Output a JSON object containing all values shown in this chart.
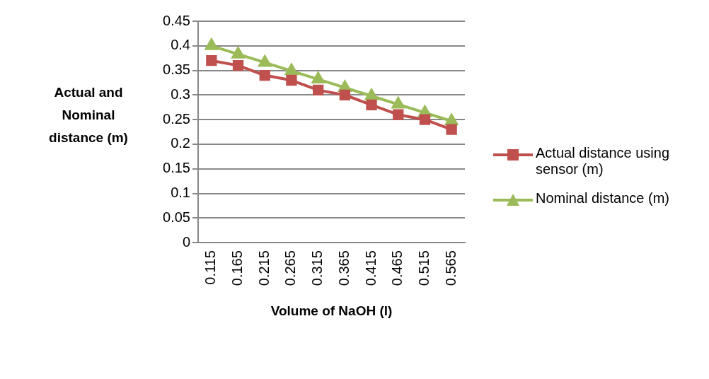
{
  "chart_data": {
    "type": "line",
    "xlabel": "Volume of NaOH (l)",
    "ylabel": "Actual and Nominal distance (m)",
    "categories": [
      "0.115",
      "0.165",
      "0.215",
      "0.265",
      "0.315",
      "0.365",
      "0.415",
      "0.465",
      "0.515",
      "0.565"
    ],
    "series": [
      {
        "name": "Actual distance using sensor (m)",
        "color": "#c0504d",
        "marker": "square",
        "values": [
          0.37,
          0.36,
          0.34,
          0.33,
          0.31,
          0.3,
          0.28,
          0.26,
          0.25,
          0.23
        ]
      },
      {
        "name": "Nominal distance (m)",
        "color": "#9bbb59",
        "marker": "triangle",
        "values": [
          0.4,
          0.383,
          0.366,
          0.349,
          0.332,
          0.315,
          0.298,
          0.281,
          0.264,
          0.247
        ]
      }
    ],
    "ylim": [
      0,
      0.45
    ],
    "yticks": [
      0,
      0.05,
      0.1,
      0.15,
      0.2,
      0.25,
      0.3,
      0.35,
      0.4,
      0.45
    ],
    "grid": "y",
    "legend": "right",
    "line_style": "solid"
  }
}
